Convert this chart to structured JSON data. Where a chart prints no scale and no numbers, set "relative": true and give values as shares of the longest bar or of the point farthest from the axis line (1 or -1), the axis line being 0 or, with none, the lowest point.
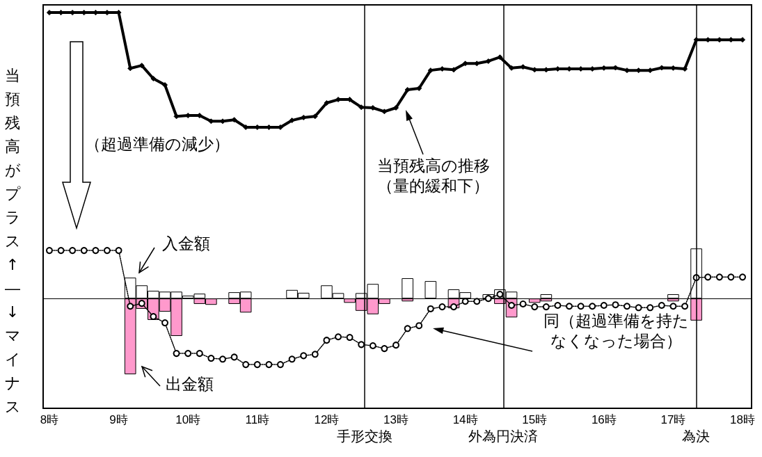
{
  "chart_data": {
    "type": "line",
    "relative": true,
    "ylabel": "当預残高がプラス↑―↓マイナス",
    "annotations": [
      "（超過準備の減少）"
    ],
    "x": [
      8,
      8.167,
      8.333,
      8.5,
      8.667,
      8.833,
      9,
      9.167,
      9.333,
      9.5,
      9.667,
      9.833,
      10,
      10.167,
      10.333,
      10.5,
      10.667,
      10.833,
      11,
      11.167,
      11.333,
      11.5,
      11.667,
      11.833,
      12,
      12.167,
      12.333,
      12.5,
      12.667,
      12.833,
      13,
      13.167,
      13.333,
      13.5,
      13.667,
      13.833,
      14,
      14.167,
      14.333,
      14.5,
      14.667,
      14.833,
      15,
      15.167,
      15.333,
      15.5,
      15.667,
      15.833,
      16,
      16.167,
      16.333,
      16.5,
      16.667,
      16.833,
      17,
      17.167,
      17.333,
      17.5,
      17.667,
      17.833,
      18
    ],
    "xlim": [
      7.91,
      18.13
    ],
    "xticks": [
      {
        "value": 8,
        "label": "8時"
      },
      {
        "value": 9,
        "label": "9時"
      },
      {
        "value": 10,
        "label": "10時"
      },
      {
        "value": 11,
        "label": "11時"
      },
      {
        "value": 12,
        "label": "12時"
      },
      {
        "value": 13,
        "label": "13時"
      },
      {
        "value": 14,
        "label": "14時"
      },
      {
        "value": 15,
        "label": "15時"
      },
      {
        "value": 16,
        "label": "16時"
      },
      {
        "value": 17,
        "label": "17時"
      },
      {
        "value": 18,
        "label": "18時"
      }
    ],
    "series": [
      {
        "type": "bar",
        "name": "入金額",
        "color": "#ffffff",
        "values": [
          null,
          null,
          null,
          null,
          null,
          null,
          null,
          0.073,
          0.046,
          0.027,
          0.024,
          0.024,
          0.01,
          0.017,
          null,
          null,
          0.022,
          0.024,
          null,
          null,
          null,
          0.03,
          0.02,
          null,
          0.046,
          0.019,
          null,
          0.019,
          0.051,
          null,
          null,
          0.071,
          null,
          0.061,
          null,
          0.032,
          0.022,
          null,
          0.015,
          0.032,
          0.024,
          null,
          null,
          0.015,
          null,
          null,
          null,
          null,
          null,
          null,
          null,
          null,
          null,
          null,
          0.015,
          null,
          0.175,
          null,
          null,
          null,
          null
        ]
      },
      {
        "type": "bar",
        "name": "出金額",
        "color": "#ff99cc",
        "values": [
          null,
          null,
          null,
          null,
          null,
          null,
          null,
          -0.265,
          -0.036,
          -0.075,
          -0.046,
          -0.131,
          null,
          -0.019,
          -0.022,
          null,
          -0.019,
          -0.049,
          null,
          null,
          null,
          null,
          null,
          null,
          null,
          null,
          -0.015,
          -0.043,
          -0.055,
          -0.019,
          null,
          -0.01,
          null,
          null,
          null,
          -0.034,
          null,
          null,
          null,
          -0.019,
          -0.066,
          null,
          -0.015,
          -0.01,
          null,
          null,
          null,
          null,
          null,
          null,
          null,
          null,
          null,
          null,
          -0.01,
          null,
          -0.077,
          null,
          null,
          null,
          null
        ]
      },
      {
        "name": "当預残高の推移（量的緩和下）",
        "color": "#000000",
        "marker": "diamond",
        "line_style": "solid",
        "values": [
          1,
          1,
          1,
          1,
          1,
          1,
          1,
          0.805,
          0.815,
          0.769,
          0.747,
          0.637,
          0.64,
          0.64,
          0.62,
          0.62,
          0.625,
          0.599,
          0.599,
          0.599,
          0.599,
          0.623,
          0.633,
          0.637,
          0.684,
          0.696,
          0.696,
          0.669,
          0.667,
          0.654,
          0.667,
          0.73,
          0.735,
          0.798,
          0.803,
          0.8,
          0.822,
          0.822,
          0.83,
          0.844,
          0.806,
          0.81,
          0.8,
          0.8,
          0.803,
          0.803,
          0.803,
          0.803,
          0.806,
          0.807,
          0.798,
          0.798,
          0.798,
          0.807,
          0.806,
          0.803,
          0.905,
          0.905,
          0.905,
          0.905,
          0.905
        ]
      },
      {
        "name": "同（超過準備を持たなくなった場合）",
        "color": "#000000",
        "marker": "circle",
        "line_style": "dotted",
        "values": [
          0.168,
          0.168,
          0.168,
          0.168,
          0.168,
          0.168,
          0.168,
          -0.027,
          -0.017,
          -0.063,
          -0.085,
          -0.192,
          -0.192,
          -0.192,
          -0.209,
          -0.212,
          -0.205,
          -0.231,
          -0.231,
          -0.231,
          -0.231,
          -0.212,
          -0.2,
          -0.195,
          -0.146,
          -0.134,
          -0.136,
          -0.161,
          -0.165,
          -0.175,
          -0.163,
          -0.105,
          -0.095,
          -0.036,
          -0.029,
          -0.029,
          -0.01,
          -0.01,
          0,
          0.015,
          -0.024,
          -0.019,
          -0.029,
          -0.029,
          -0.024,
          -0.027,
          -0.027,
          -0.027,
          -0.024,
          -0.022,
          -0.027,
          -0.032,
          -0.032,
          -0.024,
          -0.027,
          -0.027,
          0.073,
          0.075,
          0.075,
          0.075,
          0.075
        ]
      }
    ],
    "ref_lines": [
      {
        "axis": "x",
        "value": 12.55,
        "label": "手形交換",
        "color": "#000000"
      },
      {
        "axis": "x",
        "value": 14.55,
        "label": "外為円決済",
        "color": "#000000"
      },
      {
        "axis": "x",
        "value": 17.33,
        "label": "為決",
        "color": "#000000"
      }
    ],
    "grid": false
  }
}
